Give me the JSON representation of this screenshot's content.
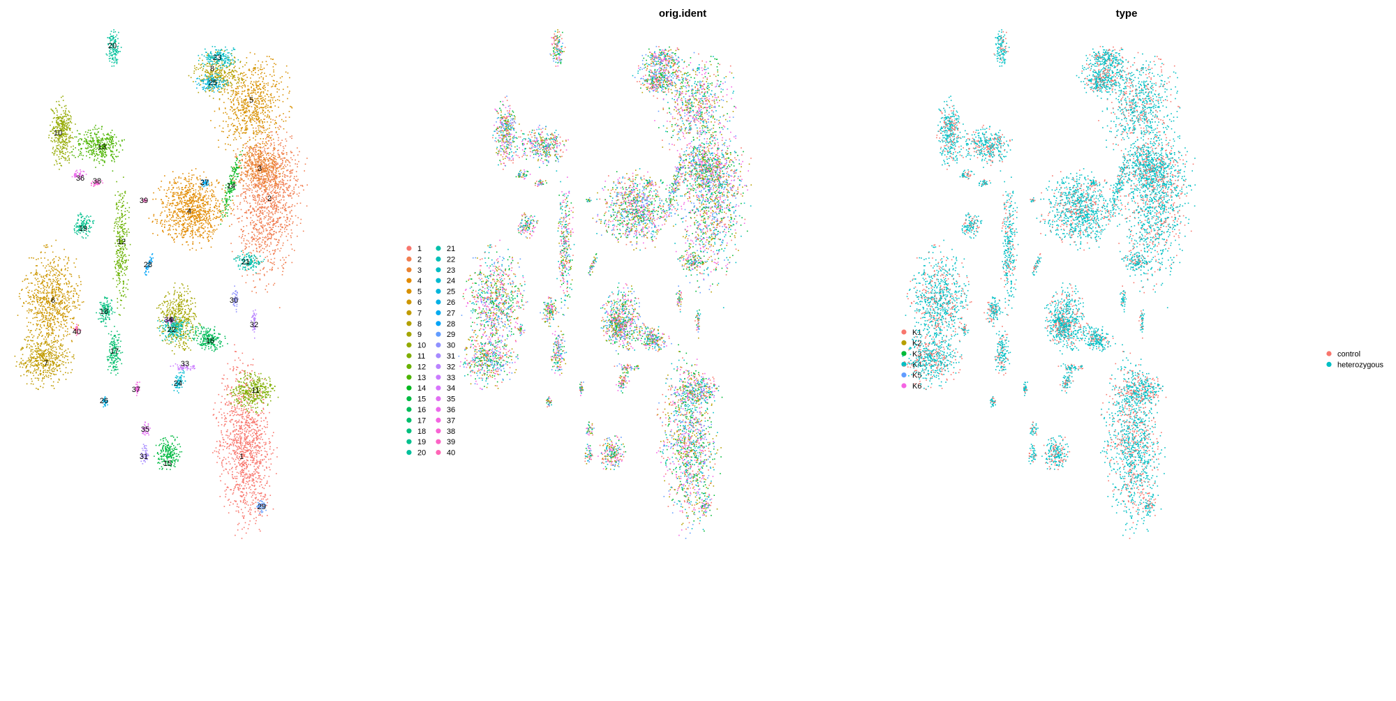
{
  "figure": {
    "panels": [
      {
        "key": "cluster",
        "title": ""
      },
      {
        "key": "orig_ident",
        "title": "orig.ident"
      },
      {
        "key": "type",
        "title": "type"
      }
    ]
  },
  "chart_data": [
    {
      "type": "scatter",
      "title": "",
      "xlabel": "",
      "ylabel": "",
      "grid": false,
      "legend_placement": "right",
      "legend": {
        "columns": [
          [
            "1",
            "2",
            "3",
            "4",
            "5",
            "6",
            "7",
            "8",
            "9",
            "10",
            "11",
            "12",
            "13",
            "14",
            "15",
            "16",
            "17",
            "18",
            "19",
            "20"
          ],
          [
            "21",
            "22",
            "23",
            "24",
            "25",
            "26",
            "27",
            "28",
            "29",
            "30",
            "31",
            "32",
            "33",
            "34",
            "35",
            "36",
            "37",
            "38",
            "39",
            "40"
          ]
        ],
        "colors": [
          "#F8766D",
          "#F17D50",
          "#EA8331",
          "#E28A00",
          "#D89000",
          "#CD9600",
          "#C09B00",
          "#B2A000",
          "#A3A500",
          "#93AA00",
          "#7FAE00",
          "#69B100",
          "#4CB400",
          "#00B81F",
          "#00BA42",
          "#00BC59",
          "#00BE6C",
          "#00BF7D",
          "#00C08D",
          "#00C09B",
          "#00BFAA",
          "#00BEB7",
          "#00BCC4",
          "#00B9D0",
          "#00B5DB",
          "#00B0E5",
          "#00AAEF",
          "#00A3F7",
          "#619CFF",
          "#8F91FF",
          "#A68AFF",
          "#B983FF",
          "#CA7BFF",
          "#D874FD",
          "#E26EF2",
          "#EC69EC",
          "#F365E1",
          "#F863D4",
          "#FC63C6",
          "#FF65B6"
        ]
      },
      "cluster_labels": [
        "1",
        "2",
        "3",
        "4",
        "5",
        "6",
        "7",
        "8",
        "9",
        "10",
        "11",
        "12",
        "13",
        "14",
        "15",
        "16",
        "17",
        "18",
        "19",
        "20",
        "21",
        "22",
        "23",
        "24",
        "25",
        "26",
        "27",
        "28",
        "29",
        "30",
        "31",
        "32",
        "33",
        "34",
        "35",
        "36",
        "37",
        "38",
        "39",
        "40"
      ]
    },
    {
      "type": "scatter",
      "title": "orig.ident",
      "xlabel": "",
      "ylabel": "",
      "grid": false,
      "legend_placement": "right",
      "series": [
        {
          "name": "K1",
          "color": "#F8766D"
        },
        {
          "name": "K2",
          "color": "#B79F00"
        },
        {
          "name": "K3",
          "color": "#00BA38"
        },
        {
          "name": "K4",
          "color": "#00BFC4"
        },
        {
          "name": "K5",
          "color": "#619CFF"
        },
        {
          "name": "K6",
          "color": "#F564E3"
        }
      ]
    },
    {
      "type": "scatter",
      "title": "type",
      "xlabel": "",
      "ylabel": "",
      "grid": false,
      "legend_placement": "right",
      "series": [
        {
          "name": "control",
          "color": "#F8766D"
        },
        {
          "name": "heterozygous",
          "color": "#00BFC4"
        }
      ]
    }
  ]
}
